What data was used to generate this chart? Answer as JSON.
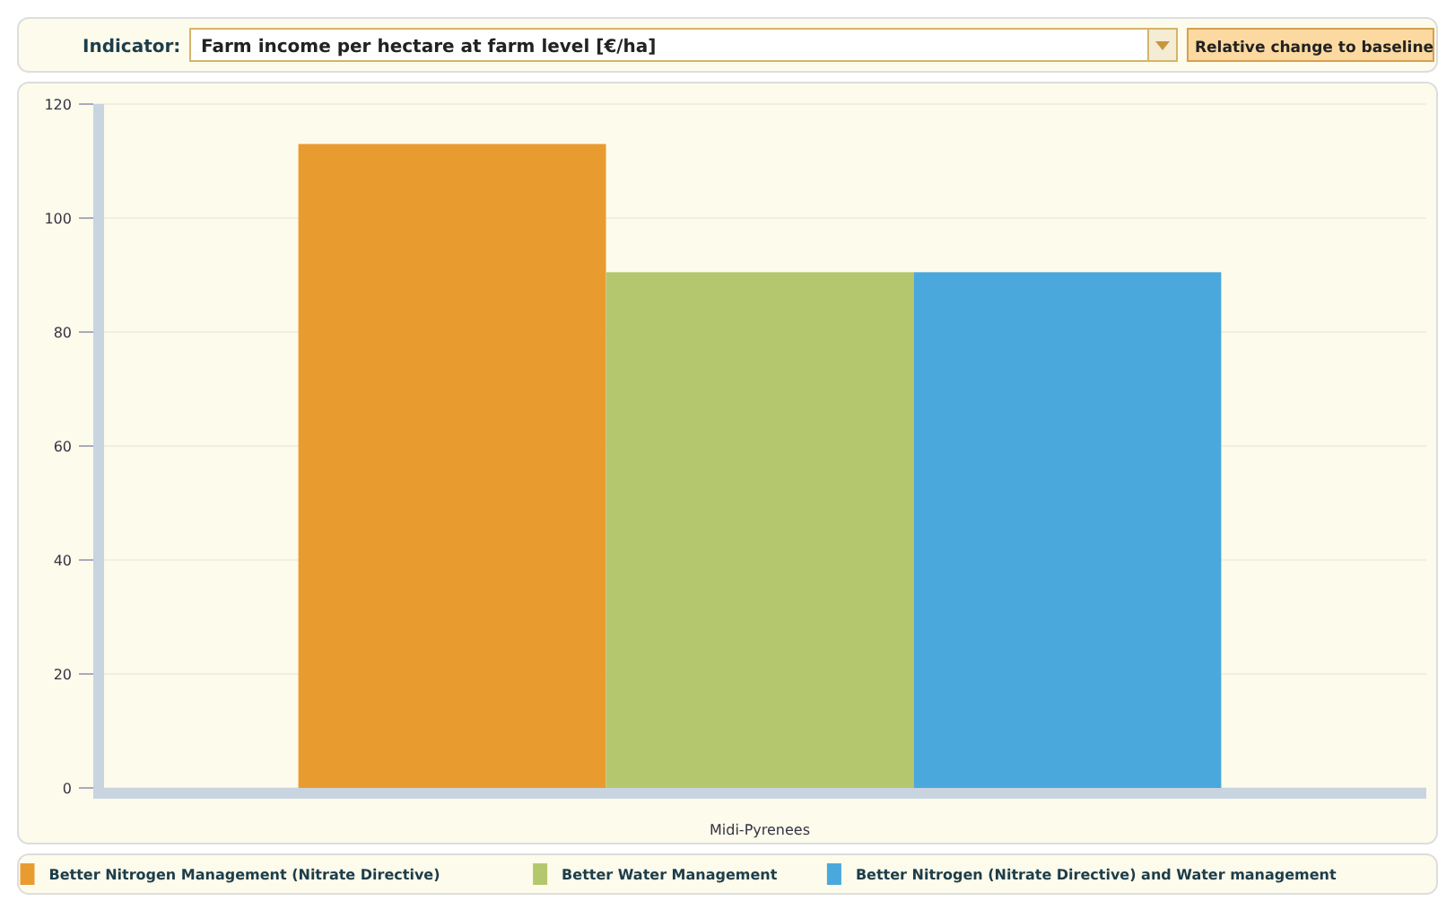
{
  "chart_data": {
    "type": "bar",
    "title": "Farm income per hectare at farm level [€/ha]",
    "annotations": [
      "Indicator:",
      "Relative change to baseline"
    ],
    "categories": [
      "Midi-Pyrenees"
    ],
    "series": [
      {
        "name": "Better Nitrogen Management (Nitrate Directive)",
        "color": "#e89c30",
        "values": [
          113
        ]
      },
      {
        "name": "Better Water Management",
        "color": "#b5c76e",
        "values": [
          90.5
        ]
      },
      {
        "name": "Better Nitrogen (Nitrate Directive) and Water management",
        "color": "#4aa8dc",
        "values": [
          90.5
        ]
      }
    ],
    "ylim": [
      0,
      120
    ],
    "yticks": [
      0,
      20,
      40,
      60,
      80,
      100,
      120
    ],
    "grid": "y",
    "legend": "bottom"
  }
}
